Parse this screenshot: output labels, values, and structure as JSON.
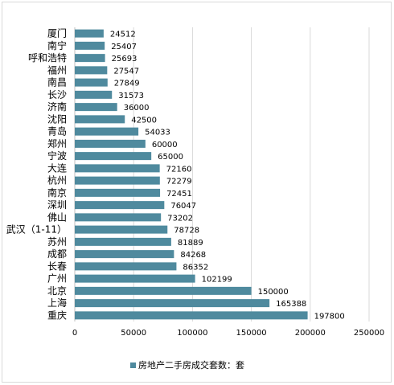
{
  "chart_data": {
    "type": "bar",
    "orientation": "horizontal",
    "categories": [
      "厦门",
      "南宁",
      "呼和浩特",
      "福州",
      "南昌",
      "长沙",
      "济南",
      "沈阳",
      "青岛",
      "郑州",
      "宁波",
      "大连",
      "杭州",
      "南京",
      "深圳",
      "佛山",
      "武汉（1-11）",
      "苏州",
      "成都",
      "长春",
      "广州",
      "北京",
      "上海",
      "重庆"
    ],
    "series": [
      {
        "name": "房地产二手房成交套数：套",
        "values": [
          24512,
          25407,
          25693,
          27547,
          27849,
          31573,
          36000,
          42500,
          54033,
          60000,
          65000,
          72160,
          72279,
          72451,
          76047,
          73202,
          78728,
          81889,
          84268,
          86352,
          102199,
          150000,
          165388,
          197800
        ],
        "labels": [
          "24512",
          "25407",
          "25693",
          "27547",
          "27849",
          "31573",
          "36000",
          "42500",
          "54033",
          "60000",
          "65000",
          "72160",
          "72279",
          "72451",
          "76047",
          "73202",
          "78728",
          "81889",
          "84268",
          "86352",
          "102199",
          "150000",
          "165388",
          "197800"
        ]
      }
    ],
    "xlim": [
      0,
      250000
    ],
    "xticks": [
      0,
      50000,
      100000,
      150000,
      200000,
      250000
    ],
    "xtick_labels": [
      "0",
      "50000",
      "100000",
      "150000",
      "200000",
      "250000"
    ],
    "grid": "vertical",
    "legend_position": "bottom",
    "title": "",
    "xlabel": "",
    "ylabel": "",
    "bar_color": "#4f8a9e"
  }
}
